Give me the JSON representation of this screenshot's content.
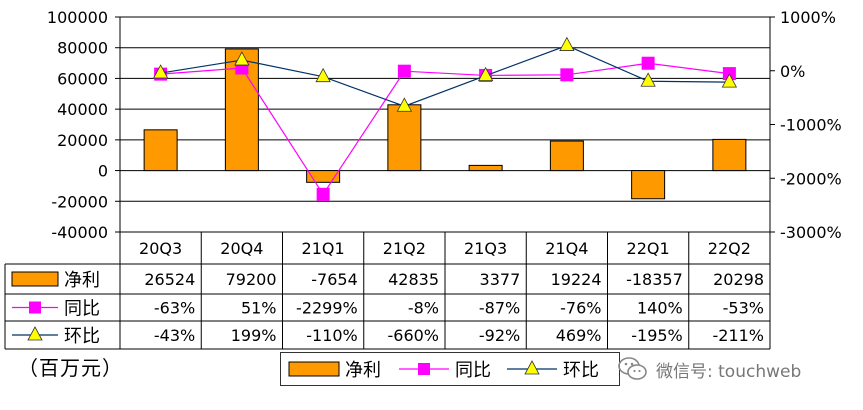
{
  "chart_data": {
    "type": "bar+line",
    "categories": [
      "20Q3",
      "20Q4",
      "21Q1",
      "21Q2",
      "21Q3",
      "21Q4",
      "22Q1",
      "22Q2"
    ],
    "series": [
      {
        "name": "净利",
        "kind": "bar",
        "axis": "left",
        "color": "#FF9900",
        "values": [
          26524,
          79200,
          -7654,
          42835,
          3377,
          19224,
          -18357,
          20298
        ],
        "labels": [
          "26524",
          "79200",
          "-7654",
          "42835",
          "3377",
          "19224",
          "-18357",
          "20298"
        ]
      },
      {
        "name": "同比",
        "kind": "line",
        "axis": "right",
        "color": "#FF00FF",
        "marker": "square",
        "values": [
          -63,
          51,
          -2299,
          -8,
          -87,
          -76,
          140,
          -53
        ],
        "labels": [
          "-63%",
          "51%",
          "-2299%",
          "-8%",
          "-87%",
          "-76%",
          "140%",
          "-53%"
        ]
      },
      {
        "name": "环比",
        "kind": "line",
        "axis": "right",
        "color": "#003366",
        "marker": "triangle",
        "marker_color": "#FFFF00",
        "values": [
          -43,
          199,
          -110,
          -660,
          -92,
          469,
          -195,
          -211
        ],
        "labels": [
          "-43%",
          "199%",
          "-110%",
          "-660%",
          "-92%",
          "469%",
          "-195%",
          "-211%"
        ]
      }
    ],
    "y_left": {
      "min": -40000,
      "max": 100000,
      "ticks": [
        "100000",
        "80000",
        "60000",
        "40000",
        "20000",
        "0",
        "-20000",
        "-40000"
      ]
    },
    "y_right": {
      "min": -3000,
      "max": 1000,
      "ticks": [
        "1000%",
        "0%",
        "-1000%",
        "-2000%",
        "-3000%"
      ]
    },
    "grid": true,
    "data_table": true,
    "legend_position": "bottom"
  },
  "unit_label": "（百万元）",
  "legend": [
    {
      "label": "净利",
      "marker": "bar"
    },
    {
      "label": "同比",
      "marker": "square"
    },
    {
      "label": "环比",
      "marker": "triangle"
    }
  ],
  "watermark": {
    "text": "微信号: touchweb",
    "icon": "wechat-icon"
  }
}
